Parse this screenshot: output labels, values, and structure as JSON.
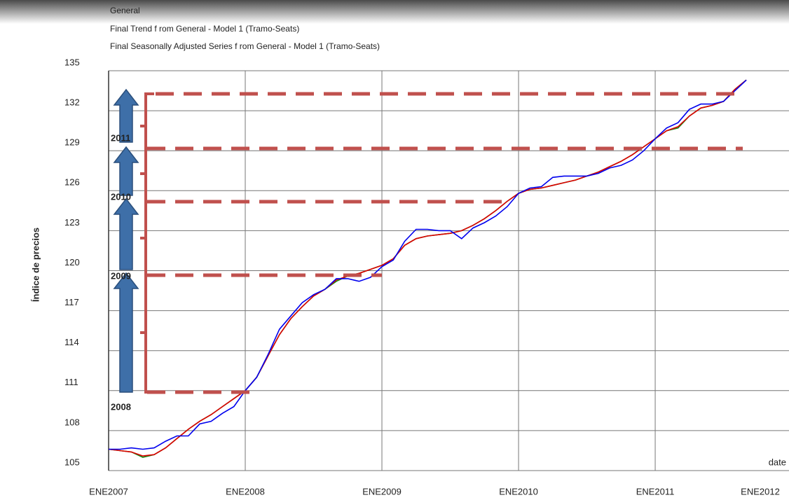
{
  "chart_data": {
    "type": "line",
    "ylabel": "Índice de precios",
    "xlabel": "date",
    "xlim": [
      0,
      59.75
    ],
    "xticks": [
      {
        "value": 0,
        "label": "ENE2007"
      },
      {
        "value": 12,
        "label": "ENE2008"
      },
      {
        "value": 24,
        "label": "ENE2009"
      },
      {
        "value": 36,
        "label": "ENE2010"
      },
      {
        "value": 48,
        "label": "ENE2011"
      },
      {
        "value": 60,
        "label": "ENE2012"
      }
    ],
    "ylim": [
      105,
      135
    ],
    "yticks": [
      105,
      108,
      111,
      114,
      117,
      120,
      123,
      126,
      129,
      132,
      135
    ],
    "grid": true,
    "x": [
      0,
      1,
      2,
      3,
      4,
      5,
      6,
      7,
      8,
      9,
      10,
      11,
      12,
      13,
      14,
      15,
      16,
      17,
      18,
      19,
      20,
      21,
      22,
      23,
      24,
      25,
      26,
      27,
      28,
      29,
      30,
      31,
      32,
      33,
      34,
      35,
      36,
      37,
      38,
      39,
      40,
      41,
      42,
      43,
      44,
      45,
      46,
      47,
      48,
      49,
      50,
      51,
      52,
      53,
      54,
      55,
      56
    ],
    "series": [
      {
        "name": "General",
        "color": "#0000ee",
        "values": [
          106.6,
          106.6,
          106.7,
          106.6,
          106.7,
          107.2,
          107.6,
          107.6,
          108.5,
          108.7,
          109.3,
          109.8,
          111.0,
          112.0,
          113.7,
          115.6,
          116.6,
          117.6,
          118.2,
          118.6,
          119.4,
          119.4,
          119.2,
          119.5,
          120.3,
          120.8,
          122.2,
          123.1,
          123.1,
          123.0,
          123.0,
          122.4,
          123.2,
          123.6,
          124.1,
          124.8,
          125.8,
          126.2,
          126.3,
          127.0,
          127.1,
          127.1,
          127.1,
          127.3,
          127.7,
          127.9,
          128.3,
          129.0,
          129.9,
          130.7,
          131.1,
          132.1,
          132.5,
          132.5,
          132.7,
          133.5,
          134.3
        ]
      },
      {
        "name": "Final Trend f rom General - Model 1 (Tramo-Seats)",
        "color": "#dd0000",
        "values": [
          106.6,
          106.5,
          106.4,
          106.1,
          106.2,
          106.7,
          107.4,
          108.1,
          108.7,
          109.2,
          109.8,
          110.4,
          111.0,
          112.0,
          113.6,
          115.2,
          116.4,
          117.3,
          118.1,
          118.6,
          119.3,
          119.6,
          119.8,
          120.1,
          120.4,
          120.9,
          121.9,
          122.4,
          122.6,
          122.7,
          122.8,
          123.0,
          123.4,
          123.9,
          124.5,
          125.2,
          125.8,
          126.1,
          126.2,
          126.4,
          126.6,
          126.8,
          127.1,
          127.4,
          127.8,
          128.2,
          128.7,
          129.3,
          129.9,
          130.5,
          130.8,
          131.6,
          132.2,
          132.4,
          132.7,
          133.6,
          134.3
        ]
      },
      {
        "name": "Final Seasonally Adjusted Series f rom General - Model 1 (Tramo-Seats)",
        "color": "#118811",
        "values": [
          106.6,
          106.5,
          106.4,
          106.0,
          106.2,
          106.7,
          107.4,
          108.1,
          108.7,
          109.2,
          109.8,
          110.4,
          111.0,
          112.0,
          113.6,
          115.2,
          116.4,
          117.3,
          118.1,
          118.6,
          119.2,
          119.6,
          119.8,
          120.1,
          120.4,
          120.9,
          121.9,
          122.4,
          122.6,
          122.7,
          122.8,
          123.0,
          123.4,
          123.9,
          124.5,
          125.2,
          125.8,
          126.1,
          126.2,
          126.4,
          126.6,
          126.8,
          127.1,
          127.4,
          127.8,
          128.2,
          128.7,
          129.3,
          129.9,
          130.5,
          130.7,
          131.6,
          132.2,
          132.4,
          132.7,
          133.6,
          134.3
        ]
      }
    ],
    "annotations": [
      "2008",
      "2009",
      "2010",
      "2011"
    ]
  }
}
